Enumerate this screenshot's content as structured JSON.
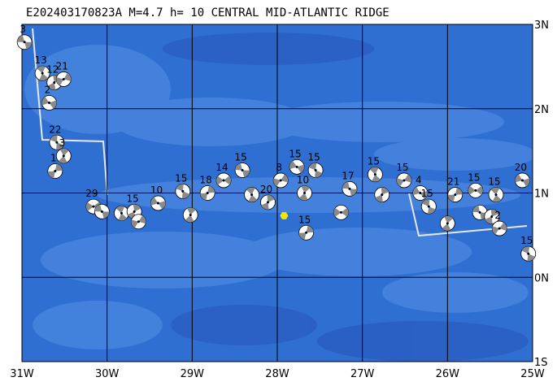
{
  "header": {
    "title": "E202403170823A M=4.7 h= 10 CENTRAL MID-ATLANTIC RIDGE"
  },
  "map": {
    "lonlim": [
      -31,
      -25
    ],
    "latlim": [
      -1,
      3
    ],
    "lon_ticks": [
      {
        "value": -31,
        "label": "31W"
      },
      {
        "value": -30,
        "label": "30W"
      },
      {
        "value": -29,
        "label": "29W"
      },
      {
        "value": -28,
        "label": "28W"
      },
      {
        "value": -27,
        "label": "27W"
      },
      {
        "value": -26,
        "label": "26W"
      },
      {
        "value": -25,
        "label": "25W"
      }
    ],
    "lat_ticks": [
      {
        "value": 3,
        "label": "3N"
      },
      {
        "value": 2,
        "label": "2N"
      },
      {
        "value": 1,
        "label": "1N"
      },
      {
        "value": 0,
        "label": "0N"
      },
      {
        "value": -1,
        "label": "1S"
      }
    ],
    "epicenter": {
      "lon": -27.92,
      "lat": 0.73,
      "color": "#f5e400"
    },
    "events": [
      {
        "lon": -30.97,
        "lat": 2.79,
        "label": "3"
      },
      {
        "lon": -30.76,
        "lat": 2.42,
        "label": "13"
      },
      {
        "lon": -30.62,
        "lat": 2.31,
        "label": "12"
      },
      {
        "lon": -30.51,
        "lat": 2.35,
        "label": "21"
      },
      {
        "lon": -30.68,
        "lat": 2.07,
        "label": "2"
      },
      {
        "lon": -30.59,
        "lat": 1.6,
        "label": "22"
      },
      {
        "lon": -30.51,
        "lat": 1.44,
        "label": "3"
      },
      {
        "lon": -30.61,
        "lat": 1.26,
        "label": "1"
      },
      {
        "lon": -30.16,
        "lat": 0.84,
        "label": "29"
      },
      {
        "lon": -30.06,
        "lat": 0.78
      },
      {
        "lon": -29.83,
        "lat": 0.76
      },
      {
        "lon": -29.68,
        "lat": 0.78,
        "label": "15"
      },
      {
        "lon": -29.63,
        "lat": 0.66
      },
      {
        "lon": -29.4,
        "lat": 0.88,
        "label": "10"
      },
      {
        "lon": -29.11,
        "lat": 1.02,
        "label": "15"
      },
      {
        "lon": -29.02,
        "lat": 0.74
      },
      {
        "lon": -28.82,
        "lat": 1.0,
        "label": "18"
      },
      {
        "lon": -28.63,
        "lat": 1.15,
        "label": "14"
      },
      {
        "lon": -28.41,
        "lat": 1.27,
        "label": "15"
      },
      {
        "lon": -28.3,
        "lat": 0.98
      },
      {
        "lon": -28.11,
        "lat": 0.89,
        "label": "20"
      },
      {
        "lon": -27.96,
        "lat": 1.15,
        "label": "8"
      },
      {
        "lon": -27.77,
        "lat": 1.31,
        "label": "15"
      },
      {
        "lon": -27.55,
        "lat": 1.27,
        "label": "15"
      },
      {
        "lon": -27.68,
        "lat": 1.0,
        "label": "10"
      },
      {
        "lon": -27.66,
        "lat": 0.53,
        "label": "15"
      },
      {
        "lon": -27.25,
        "lat": 0.77
      },
      {
        "lon": -27.15,
        "lat": 1.05,
        "label": "17"
      },
      {
        "lon": -26.85,
        "lat": 1.22,
        "label": "15"
      },
      {
        "lon": -26.77,
        "lat": 0.98
      },
      {
        "lon": -26.51,
        "lat": 1.15,
        "label": "15"
      },
      {
        "lon": -26.32,
        "lat": 1.0,
        "label": "4"
      },
      {
        "lon": -26.22,
        "lat": 0.84,
        "label": "15"
      },
      {
        "lon": -26.0,
        "lat": 0.64
      },
      {
        "lon": -25.91,
        "lat": 0.98,
        "label": "21"
      },
      {
        "lon": -25.67,
        "lat": 1.03,
        "label": "15"
      },
      {
        "lon": -25.62,
        "lat": 0.77
      },
      {
        "lon": -25.43,
        "lat": 0.98,
        "label": "15"
      },
      {
        "lon": -25.48,
        "lat": 0.72
      },
      {
        "lon": -25.39,
        "lat": 0.58,
        "label": "2"
      },
      {
        "lon": -25.12,
        "lat": 1.15,
        "label": "20"
      },
      {
        "lon": -25.05,
        "lat": 0.28,
        "label": "15"
      }
    ]
  }
}
